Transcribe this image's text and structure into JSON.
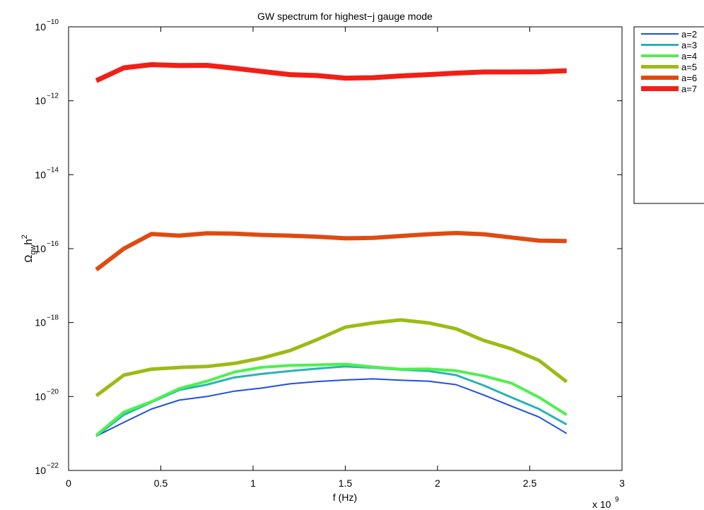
{
  "chart_data": {
    "type": "line",
    "title": "GW spectrum for highest−j gauge mode",
    "xlabel": "f (Hz)",
    "ylabel": {
      "base": "Ω",
      "sub": "gw",
      "tail": "h",
      "sup": "2"
    },
    "x_multiplier": {
      "text": "x 10",
      "exp": "9"
    },
    "xlim": [
      0,
      3000000000.0
    ],
    "ylim": [
      1e-22,
      1e-10
    ],
    "yscale": "log",
    "grid": false,
    "legend_position": "outside-top-right",
    "xticks": [
      {
        "value": 0,
        "label": "0"
      },
      {
        "value": 500000000.0,
        "label": "0.5"
      },
      {
        "value": 1000000000.0,
        "label": "1"
      },
      {
        "value": 1500000000.0,
        "label": "1.5"
      },
      {
        "value": 2000000000.0,
        "label": "2"
      },
      {
        "value": 2500000000.0,
        "label": "2.5"
      },
      {
        "value": 3000000000.0,
        "label": "3"
      }
    ],
    "yticks": [
      {
        "value": 1e-22,
        "base": "10",
        "exp": "−22"
      },
      {
        "value": 1e-20,
        "base": "10",
        "exp": "−20"
      },
      {
        "value": 1e-18,
        "base": "10",
        "exp": "−18"
      },
      {
        "value": 1e-16,
        "base": "10",
        "exp": "−16"
      },
      {
        "value": 1e-14,
        "base": "10",
        "exp": "−14"
      },
      {
        "value": 1e-12,
        "base": "10",
        "exp": "−12"
      },
      {
        "value": 1e-10,
        "base": "10",
        "exp": "−10"
      }
    ],
    "x": [
      150000000.0,
      300000000.0,
      450000000.0,
      600000000.0,
      750000000.0,
      900000000.0,
      1050000000.0,
      1200000000.0,
      1350000000.0,
      1500000000.0,
      1650000000.0,
      1800000000.0,
      1950000000.0,
      2100000000.0,
      2250000000.0,
      2400000000.0,
      2550000000.0,
      2700000000.0
    ],
    "series": [
      {
        "name": "a=2",
        "color": "#1f4fe0",
        "width": 2,
        "values": [
          8.5e-22,
          2e-21,
          4.6e-21,
          8e-21,
          1e-20,
          1.4e-20,
          1.7e-20,
          2.2e-20,
          2.55e-20,
          2.8e-20,
          3e-20,
          2.75e-20,
          2.6e-20,
          2.1e-20,
          1.1e-20,
          5.5e-21,
          2.8e-21,
          1e-21
        ]
      },
      {
        "name": "a=3",
        "color": "#2ab3b3",
        "width": 3,
        "values": [
          8.5e-22,
          3.2e-21,
          7e-21,
          1.5e-20,
          2.1e-20,
          3.3e-20,
          4.1e-20,
          4.9e-20,
          5.7e-20,
          6.5e-20,
          6e-20,
          5.3e-20,
          4.9e-20,
          3.8e-20,
          2e-20,
          9.5e-21,
          4.6e-21,
          1.75e-21
        ]
      },
      {
        "name": "a=4",
        "color": "#4ef04e",
        "width": 4,
        "values": [
          9e-22,
          3.8e-21,
          7.3e-21,
          1.65e-20,
          2.6e-20,
          4.6e-20,
          6.2e-20,
          6.9e-20,
          7.2e-20,
          7.5e-20,
          6.3e-20,
          5.5e-20,
          5.6e-20,
          5e-20,
          3.6e-20,
          2.3e-20,
          9.5e-21,
          3.2e-21
        ]
      },
      {
        "name": "a=5",
        "color": "#9bbb14",
        "width": 5,
        "values": [
          1.05e-20,
          3.8e-20,
          5.5e-20,
          6.1e-20,
          6.5e-20,
          7.9e-20,
          1.1e-19,
          1.75e-19,
          3.5e-19,
          7.5e-19,
          9.8e-19,
          1.18e-18,
          9.8e-19,
          6.8e-19,
          3.3e-19,
          1.95e-19,
          9.5e-20,
          2.5e-20
        ]
      },
      {
        "name": "a=6",
        "color": "#e04a10",
        "width": 6,
        "values": [
          2.7e-17,
          1e-16,
          2.5e-16,
          2.25e-16,
          2.6e-16,
          2.55e-16,
          2.35e-16,
          2.25e-16,
          2.1e-16,
          1.9e-16,
          1.95e-16,
          2.2e-16,
          2.45e-16,
          2.65e-16,
          2.45e-16,
          2e-16,
          1.65e-16,
          1.6e-16
        ]
      },
      {
        "name": "a=7",
        "color": "#f21f17",
        "width": 7,
        "values": [
          3.5e-12,
          7.8e-12,
          9.5e-12,
          9e-12,
          9.1e-12,
          7.6e-12,
          6.2e-12,
          5.1e-12,
          4.8e-12,
          4.1e-12,
          4.2e-12,
          4.7e-12,
          5.1e-12,
          5.6e-12,
          6e-12,
          6e-12,
          6.1e-12,
          6.5e-12
        ]
      }
    ]
  }
}
